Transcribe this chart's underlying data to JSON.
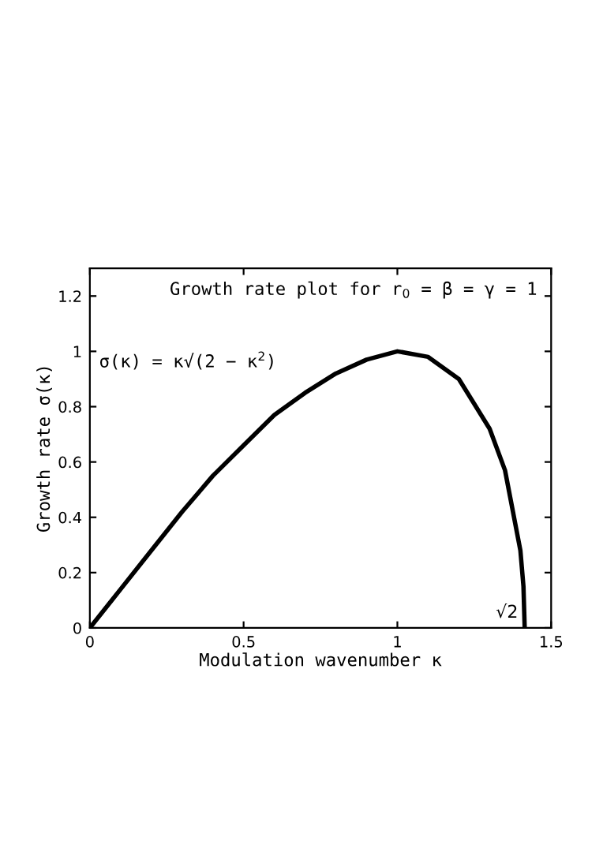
{
  "chart_data": {
    "type": "line",
    "title": "Growth rate plot for r$_{0}$ = β = γ = 1",
    "xlabel": "Modulation wavenumber κ",
    "ylabel": "Growth rate σ(κ)",
    "x": [
      0,
      0.1,
      0.2,
      0.3,
      0.4,
      0.5,
      0.6,
      0.7,
      0.8,
      0.9,
      1.0,
      1.1,
      1.2,
      1.3,
      1.35,
      1.4,
      1.41,
      1.414
    ],
    "series": [
      {
        "color": "#000000",
        "values": [
          0,
          0.14,
          0.28,
          0.42,
          0.55,
          0.66,
          0.77,
          0.85,
          0.92,
          0.97,
          1.0,
          0.98,
          0.9,
          0.72,
          0.57,
          0.28,
          0.15,
          0
        ]
      }
    ],
    "annotations": [
      "σ(κ) = κ√(2 − κ$^{2}$)",
      {
        "text": "√2",
        "x": 1.414,
        "y": 0
      }
    ],
    "xlim": [
      0,
      1.5
    ],
    "ylim": [
      0,
      1.3
    ],
    "xticks": [
      0,
      0.5,
      1,
      1.5
    ],
    "yticks": [
      0,
      0.2,
      0.4,
      0.6,
      0.8,
      1,
      1.2
    ],
    "grid": false,
    "line_style": "solid"
  }
}
